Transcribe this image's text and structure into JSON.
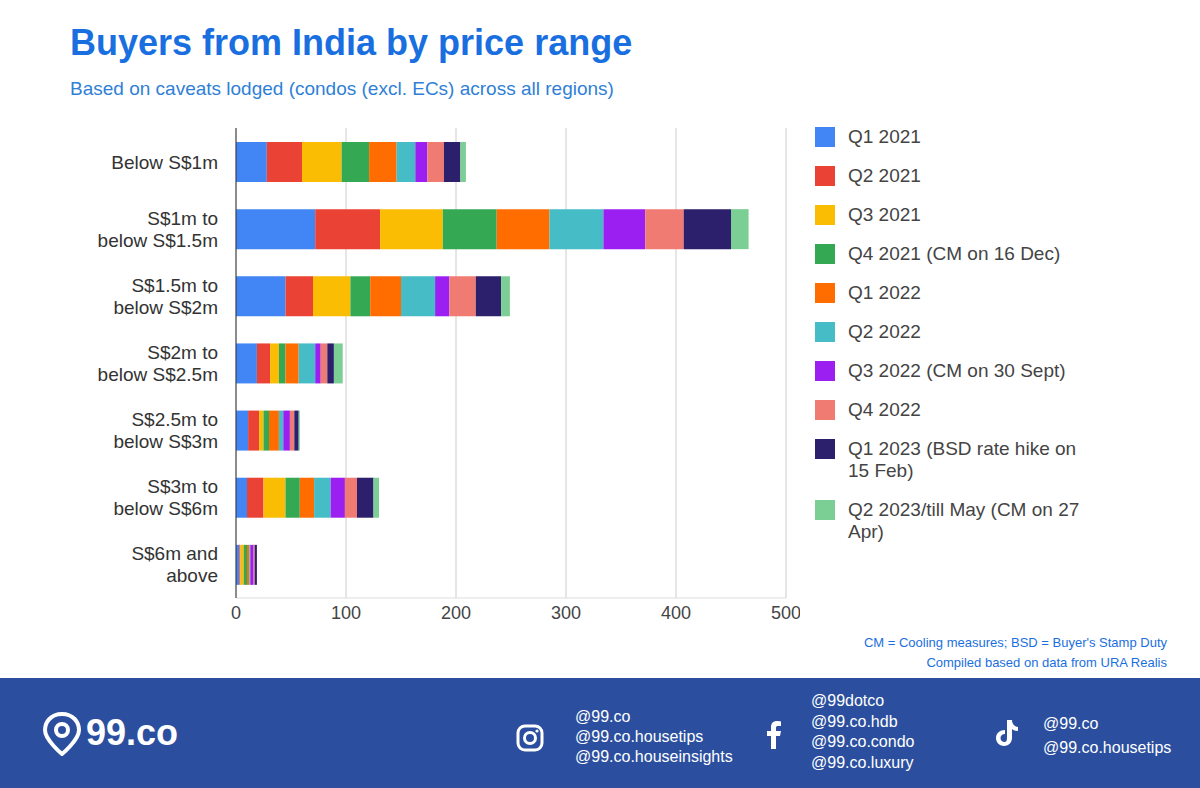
{
  "chart_data": {
    "type": "bar",
    "orientation": "horizontal",
    "stacked": true,
    "grid": true,
    "legend": "right",
    "title": "Buyers from India by price range",
    "subtitle": "Based on caveats lodged (condos (excl. ECs) across all regions)",
    "categories": [
      "Below S$1m",
      "S$1m to below S$1.5m",
      "S$1.5m to below S$2m",
      "S$2m to below S$2.5m",
      "S$2.5m to below S$3m",
      "S$3m to below S$6m",
      "S$6m and above"
    ],
    "series": [
      {
        "name": "Q1 2021",
        "color": "#4285f4",
        "values": [
          28,
          72,
          45,
          19,
          11,
          10,
          3
        ]
      },
      {
        "name": "Q2 2021",
        "color": "#ea4335",
        "values": [
          32,
          59,
          25,
          12,
          10,
          15,
          1
        ]
      },
      {
        "name": "Q3 2021",
        "color": "#fbbc04",
        "values": [
          36,
          57,
          34,
          8,
          4,
          20,
          3
        ]
      },
      {
        "name": "Q4 2021 (CM on 16 Dec)",
        "color": "#34a853",
        "values": [
          25,
          49,
          18,
          6,
          5,
          13,
          3
        ]
      },
      {
        "name": "Q1 2022",
        "color": "#ff6d01",
        "values": [
          25,
          48,
          28,
          12,
          9,
          13,
          2
        ]
      },
      {
        "name": "Q2 2022",
        "color": "#46bdc6",
        "values": [
          17,
          49,
          31,
          15,
          4,
          15,
          1
        ]
      },
      {
        "name": "Q3 2022 (CM on 30 Sept)",
        "color": "#9b1ff0",
        "values": [
          11,
          38,
          13,
          5,
          6,
          13,
          3
        ]
      },
      {
        "name": "Q4 2022",
        "color": "#f07b72",
        "values": [
          15,
          35,
          24,
          6,
          4,
          11,
          1
        ]
      },
      {
        "name": "Q1 2023 (BSD rate hike on 15 Feb)",
        "color": "#2c1f6b",
        "values": [
          15,
          43,
          23,
          6,
          4,
          15,
          2
        ]
      },
      {
        "name": "Q2 2023/till May (CM on 27 Apr)",
        "color": "#7ccf94",
        "values": [
          5,
          16,
          8,
          8,
          1,
          5,
          0
        ]
      }
    ],
    "xlim": [
      0,
      500
    ],
    "xticks": [
      0,
      100,
      200,
      300,
      400,
      500
    ],
    "annotations": [
      "CM = Cooling measures; BSD = Buyer's Stamp Duty",
      "Compiled based on data from URA Realis"
    ],
    "footer": {
      "logo": "99.co",
      "instagram": [
        "@99.co",
        "@99.co.housetips",
        "@99.co.houseinsights"
      ],
      "facebook": [
        "@99dotco",
        "@99.co.hdb",
        "@99.co.condo",
        "@99.co.luxury"
      ],
      "tiktok": [
        "@99.co",
        "@99.co.housetips"
      ]
    }
  }
}
